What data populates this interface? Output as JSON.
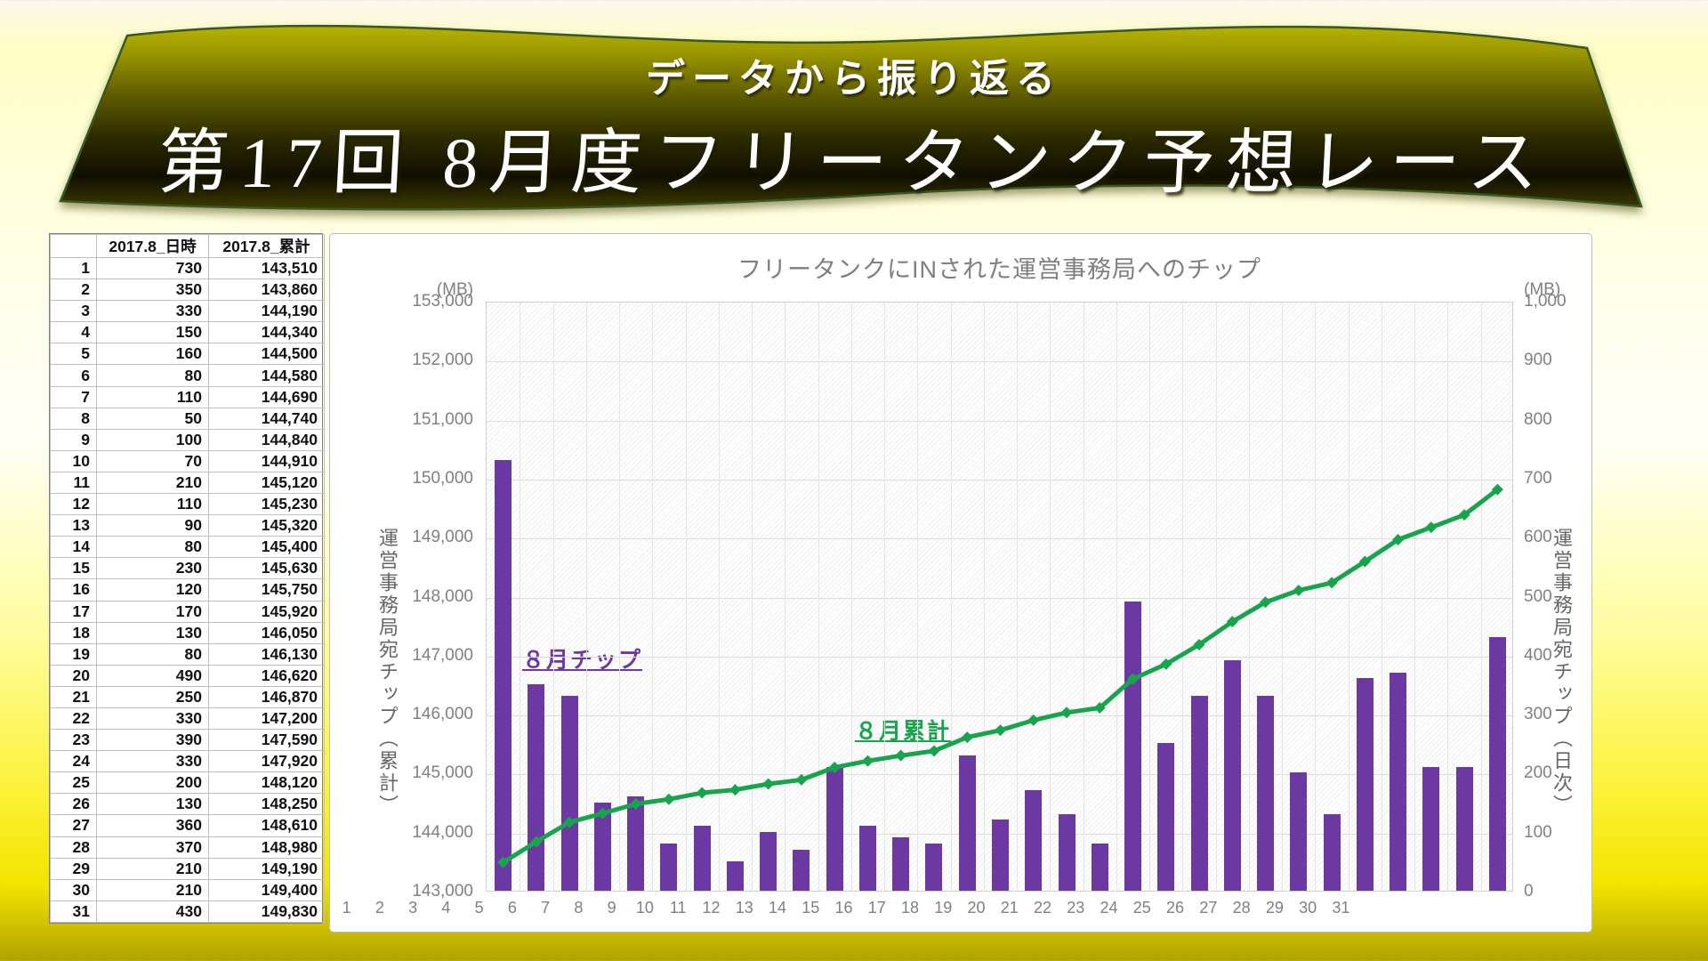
{
  "banner": {
    "subtitle": "データから振り返る",
    "title": "第17回 8月度フリータンク予想レース"
  },
  "table": {
    "headers": [
      "",
      "2017.8_日時",
      "2017.8_累計"
    ],
    "rows": [
      [
        "1",
        "730",
        "143,510"
      ],
      [
        "2",
        "350",
        "143,860"
      ],
      [
        "3",
        "330",
        "144,190"
      ],
      [
        "4",
        "150",
        "144,340"
      ],
      [
        "5",
        "160",
        "144,500"
      ],
      [
        "6",
        "80",
        "144,580"
      ],
      [
        "7",
        "110",
        "144,690"
      ],
      [
        "8",
        "50",
        "144,740"
      ],
      [
        "9",
        "100",
        "144,840"
      ],
      [
        "10",
        "70",
        "144,910"
      ],
      [
        "11",
        "210",
        "145,120"
      ],
      [
        "12",
        "110",
        "145,230"
      ],
      [
        "13",
        "90",
        "145,320"
      ],
      [
        "14",
        "80",
        "145,400"
      ],
      [
        "15",
        "230",
        "145,630"
      ],
      [
        "16",
        "120",
        "145,750"
      ],
      [
        "17",
        "170",
        "145,920"
      ],
      [
        "18",
        "130",
        "146,050"
      ],
      [
        "19",
        "80",
        "146,130"
      ],
      [
        "20",
        "490",
        "146,620"
      ],
      [
        "21",
        "250",
        "146,870"
      ],
      [
        "22",
        "330",
        "147,200"
      ],
      [
        "23",
        "390",
        "147,590"
      ],
      [
        "24",
        "330",
        "147,920"
      ],
      [
        "25",
        "200",
        "148,120"
      ],
      [
        "26",
        "130",
        "148,250"
      ],
      [
        "27",
        "360",
        "148,610"
      ],
      [
        "28",
        "370",
        "148,980"
      ],
      [
        "29",
        "210",
        "149,190"
      ],
      [
        "30",
        "210",
        "149,400"
      ],
      [
        "31",
        "430",
        "149,830"
      ]
    ]
  },
  "chart_data": {
    "type": "bar",
    "title": "フリータンクにINされた運営事務局へのチップ",
    "categories": [
      1,
      2,
      3,
      4,
      5,
      6,
      7,
      8,
      9,
      10,
      11,
      12,
      13,
      14,
      15,
      16,
      17,
      18,
      19,
      20,
      21,
      22,
      23,
      24,
      25,
      26,
      27,
      28,
      29,
      30,
      31
    ],
    "series": [
      {
        "name": "８月チップ",
        "type": "bar",
        "axis": "right",
        "color": "#6B39A1",
        "values": [
          730,
          350,
          330,
          150,
          160,
          80,
          110,
          50,
          100,
          70,
          210,
          110,
          90,
          80,
          230,
          120,
          170,
          130,
          80,
          490,
          250,
          330,
          390,
          330,
          200,
          130,
          360,
          370,
          210,
          210,
          430
        ]
      },
      {
        "name": "８月累計",
        "type": "line",
        "axis": "left",
        "color": "#18A44C",
        "values": [
          143510,
          143860,
          144190,
          144340,
          144500,
          144580,
          144690,
          144740,
          144840,
          144910,
          145120,
          145230,
          145320,
          145400,
          145630,
          145750,
          145920,
          146050,
          146130,
          146620,
          146870,
          147200,
          147590,
          147920,
          148120,
          148250,
          148610,
          148980,
          149190,
          149400,
          149830
        ]
      }
    ],
    "left_axis": {
      "unit": "(MB)",
      "title": "運営事務局宛チップ（累計）",
      "min": 143000,
      "max": 153000,
      "step": 1000,
      "ticks": [
        "153,000",
        "152,000",
        "151,000",
        "150,000",
        "149,000",
        "148,000",
        "147,000",
        "146,000",
        "145,000",
        "144,000",
        "143,000"
      ]
    },
    "right_axis": {
      "unit": "(MB)",
      "title": "運営事務局宛チップ（日次）",
      "min": 0,
      "max": 1000,
      "step": 100,
      "ticks": [
        "1,000",
        "900",
        "800",
        "700",
        "600",
        "500",
        "400",
        "300",
        "200",
        "100",
        "0"
      ]
    },
    "annotations": [
      {
        "text": "８月チップ",
        "color": "#6B39A1"
      },
      {
        "text": "８月累計",
        "color": "#18A44C"
      }
    ],
    "grid": true,
    "legend_position": "none"
  }
}
